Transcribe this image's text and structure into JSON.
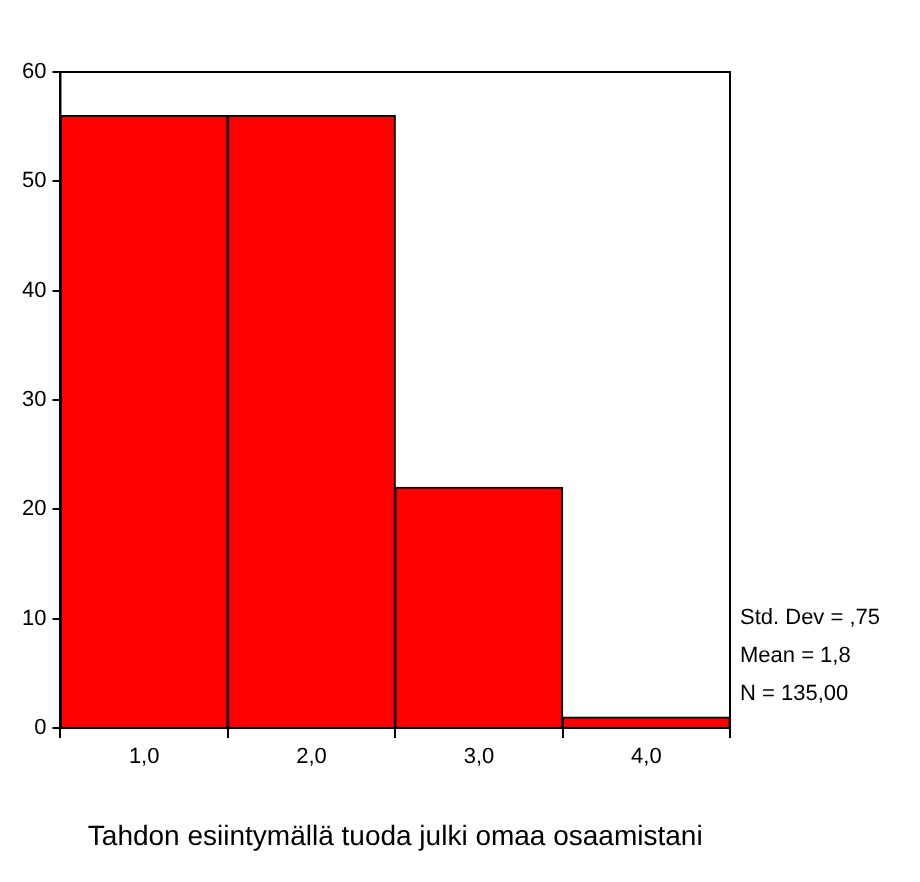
{
  "chart_data": {
    "type": "histogram",
    "xlabel": "Tahdon esiintymällä tuoda julki omaa osaamistani",
    "bins": [
      0.5,
      1.5,
      2.5,
      3.5,
      4.5
    ],
    "values": [
      56,
      56,
      22,
      1
    ],
    "color": "#ff0000",
    "xlim": [
      0.5,
      4.5
    ],
    "xticks": [
      {
        "value": 1,
        "label": "1,0"
      },
      {
        "value": 2,
        "label": "2,0"
      },
      {
        "value": 3,
        "label": "3,0"
      },
      {
        "value": 4,
        "label": "4,0"
      }
    ],
    "ylim": [
      0,
      60
    ],
    "yticks": [
      0,
      10,
      20,
      30,
      40,
      50,
      60
    ],
    "grid": false,
    "legend": false,
    "annotations": [
      "Std. Dev = ,75",
      "Mean = 1,8",
      "N = 135,00"
    ]
  }
}
